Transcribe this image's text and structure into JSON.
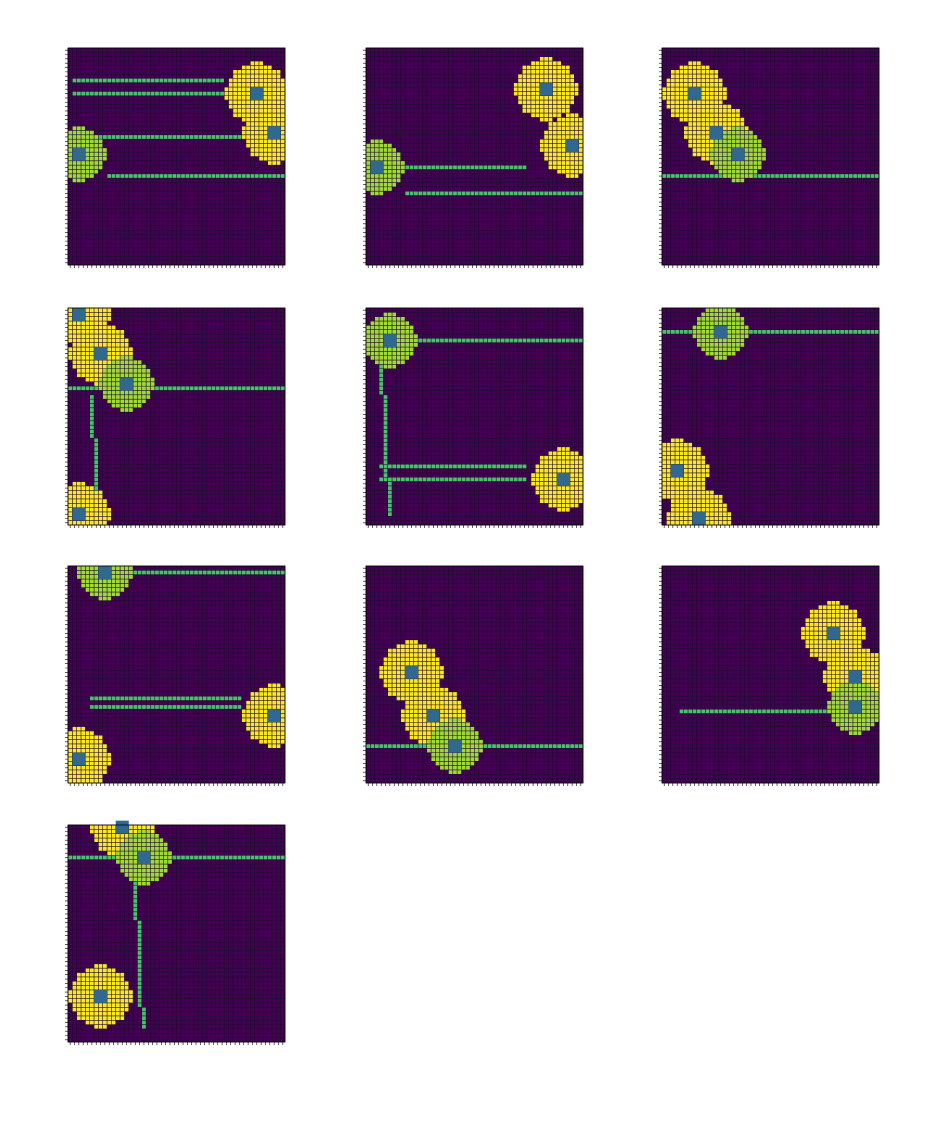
{
  "figure": {
    "rows": 4,
    "cols": 3,
    "background": "#ffffff"
  },
  "palette": {
    "empty": "#440154",
    "grid_line": "#1e0c2e",
    "region_yellow": "#fde725",
    "region_lime": "#a0da39",
    "trace_green": "#4ac16d",
    "agent_teal": "#31688e"
  },
  "chart_data": {
    "type": "heatmap",
    "title": "",
    "grid_size": [
      50,
      50
    ],
    "xlim": [
      0,
      50
    ],
    "ylim": [
      0,
      50
    ],
    "axis_ticks": "unlabeled",
    "legend": "none",
    "panels": [
      {
        "yellow_agents": [
          [
            43,
            10
          ],
          [
            47,
            19
          ]
        ],
        "lime_agents": [
          [
            2,
            24
          ]
        ],
        "lines": [
          {
            "row": 29,
            "from": 9,
            "to": 50
          },
          {
            "row": 7,
            "from": 1,
            "to": 36
          },
          {
            "row": 10,
            "from": 1,
            "to": 36
          },
          {
            "row": 20,
            "from": 6,
            "to": 40
          }
        ]
      },
      {
        "yellow_agents": [
          [
            41,
            9
          ],
          [
            47,
            22
          ]
        ],
        "lime_agents": [
          [
            2,
            27
          ]
        ],
        "lines": [
          {
            "row": 33,
            "from": 9,
            "to": 50
          },
          {
            "row": 27,
            "from": 6,
            "to": 37
          }
        ]
      },
      {
        "yellow_agents": [
          [
            7,
            10
          ],
          [
            12,
            19
          ]
        ],
        "lime_agents": [
          [
            17,
            24
          ]
        ],
        "lines": [
          {
            "row": 29,
            "from": 0,
            "to": 50
          }
        ]
      },
      {
        "yellow_agents": [
          [
            2,
            1
          ],
          [
            7,
            10
          ],
          [
            2,
            47
          ]
        ],
        "lime_agents": [
          [
            13,
            17
          ]
        ],
        "lines": [
          {
            "row": 18,
            "from": 0,
            "to": 50
          },
          {
            "col": 5,
            "from": 20,
            "to": 48
          }
        ]
      },
      {
        "yellow_agents": [
          [
            45,
            39
          ]
        ],
        "lime_agents": [
          [
            5,
            7
          ]
        ],
        "lines": [
          {
            "row": 7,
            "from": 12,
            "to": 50
          },
          {
            "row": 36,
            "from": 3,
            "to": 37
          },
          {
            "row": 39,
            "from": 3,
            "to": 37
          },
          {
            "col": 3,
            "from": 10,
            "to": 48
          }
        ]
      },
      {
        "yellow_agents": [
          [
            3,
            37
          ],
          [
            8,
            48
          ]
        ],
        "lime_agents": [
          [
            13,
            5
          ]
        ],
        "lines": [
          {
            "row": 5,
            "from": 0,
            "to": 50
          }
        ]
      },
      {
        "yellow_agents": [
          [
            47,
            34
          ],
          [
            2,
            44
          ]
        ],
        "lime_agents": [
          [
            8,
            1
          ]
        ],
        "lines": [
          {
            "row": 1,
            "from": 14,
            "to": 50
          },
          {
            "row": 30,
            "from": 5,
            "to": 40
          },
          {
            "row": 32,
            "from": 5,
            "to": 40
          }
        ]
      },
      {
        "yellow_agents": [
          [
            10,
            24
          ],
          [
            15,
            34
          ]
        ],
        "lime_agents": [
          [
            20,
            41
          ]
        ],
        "lines": [
          {
            "row": 41,
            "from": 0,
            "to": 50
          }
        ]
      },
      {
        "yellow_agents": [
          [
            39,
            15
          ],
          [
            44,
            25
          ]
        ],
        "lime_agents": [
          [
            44,
            32
          ]
        ],
        "lines": [
          {
            "row": 33,
            "from": 4,
            "to": 40
          }
        ]
      },
      {
        "yellow_agents": [
          [
            12,
            0
          ],
          [
            7,
            39
          ]
        ],
        "lime_agents": [
          [
            17,
            7
          ]
        ],
        "lines": [
          {
            "row": 7,
            "from": 0,
            "to": 50
          },
          {
            "col": 15,
            "from": 12,
            "to": 47
          }
        ]
      }
    ]
  }
}
